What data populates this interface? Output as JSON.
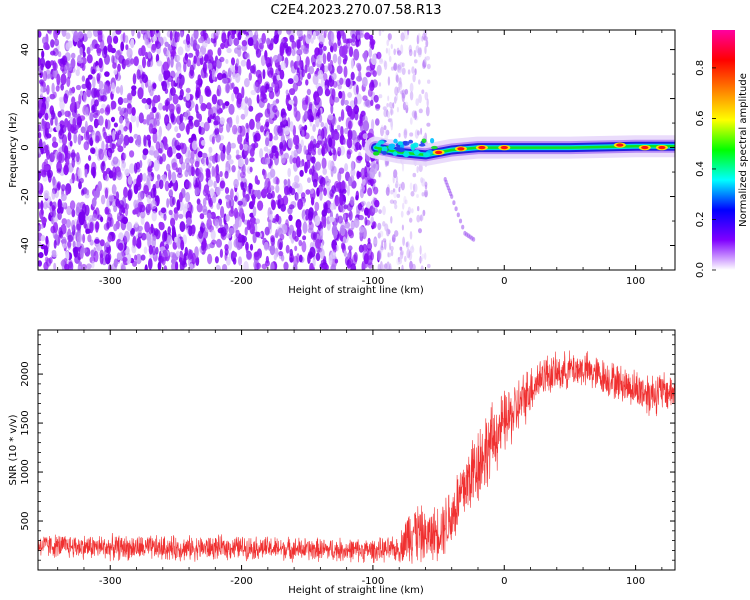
{
  "title": "C2E4.2023.270.07.58.R13",
  "chart_data": [
    {
      "type": "heatmap",
      "xlabel": "Height of straight line (km)",
      "ylabel": "Frequency (Hz)",
      "xlim": [
        -355,
        130
      ],
      "ylim": [
        -50,
        48
      ],
      "x_ticks": [
        -300,
        -200,
        -100,
        0,
        100
      ],
      "y_ticks": [
        -40,
        -20,
        0,
        20,
        40
      ],
      "noise_region_x": [
        -355,
        -95
      ],
      "sparse_region_x": [
        -95,
        -57
      ],
      "signal_line": [
        {
          "x": -98,
          "y": 0
        },
        {
          "x": -80,
          "y": -2
        },
        {
          "x": -60,
          "y": -3
        },
        {
          "x": -40,
          "y": -1
        },
        {
          "x": -20,
          "y": 0
        },
        {
          "x": 0,
          "y": 0
        },
        {
          "x": 50,
          "y": 0
        },
        {
          "x": 100,
          "y": 0.5
        },
        {
          "x": 130,
          "y": 0.5
        }
      ],
      "hot_spots": [
        {
          "x": -50,
          "y": -2
        },
        {
          "x": -33,
          "y": -0.5
        },
        {
          "x": -17,
          "y": 0
        },
        {
          "x": 0,
          "y": 0
        },
        {
          "x": 88,
          "y": 1
        },
        {
          "x": 107,
          "y": 0
        },
        {
          "x": 120,
          "y": 0
        }
      ],
      "faint_trail": [
        {
          "x": -45,
          "y": -13
        },
        {
          "x": -40,
          "y": -20
        },
        {
          "x": -30,
          "y": -35
        },
        {
          "x": -22,
          "y": -38
        }
      ],
      "colorbar": {
        "label": "Normalized spectral amplitude",
        "range": [
          0,
          0.95
        ],
        "ticks": [
          "0.0",
          "0.2",
          "0.4",
          "0.6",
          "0.8"
        ],
        "tick_values": [
          0,
          0.2,
          0.4,
          0.6,
          0.8
        ],
        "colors": [
          "#ffffff",
          "#8000ff",
          "#0000ff",
          "#00ffff",
          "#00ff00",
          "#ffff00",
          "#ff8000",
          "#ff0000",
          "#ff00a0"
        ]
      }
    },
    {
      "type": "line",
      "xlabel": "Height of straight line (km)",
      "ylabel": "SNR (10 * v/v)",
      "xlim": [
        -355,
        130
      ],
      "ylim": [
        0,
        2450
      ],
      "x_ticks": [
        -300,
        -200,
        -100,
        0,
        100
      ],
      "y_ticks": [
        500,
        1000,
        1500,
        2000
      ],
      "line_color": "#f03030",
      "series": [
        {
          "x": [
            -355,
            -300,
            -250,
            -200,
            -150,
            -100,
            -80,
            -70,
            -60,
            -50,
            -40,
            -30,
            -20,
            -10,
            0,
            10,
            20,
            30,
            40,
            50,
            60,
            70,
            80,
            90,
            100,
            110,
            120,
            130
          ],
          "values": [
            250,
            230,
            220,
            230,
            210,
            200,
            210,
            420,
            330,
            400,
            550,
            850,
            1100,
            1300,
            1500,
            1650,
            1850,
            2000,
            2000,
            2050,
            2050,
            2000,
            1950,
            1900,
            1850,
            1800,
            1820,
            1820
          ],
          "noise": [
            140,
            150,
            150,
            140,
            140,
            140,
            150,
            420,
            300,
            330,
            420,
            450,
            500,
            450,
            380,
            350,
            300,
            250,
            230,
            220,
            220,
            220,
            220,
            220,
            230,
            280,
            250,
            220
          ]
        }
      ]
    }
  ]
}
